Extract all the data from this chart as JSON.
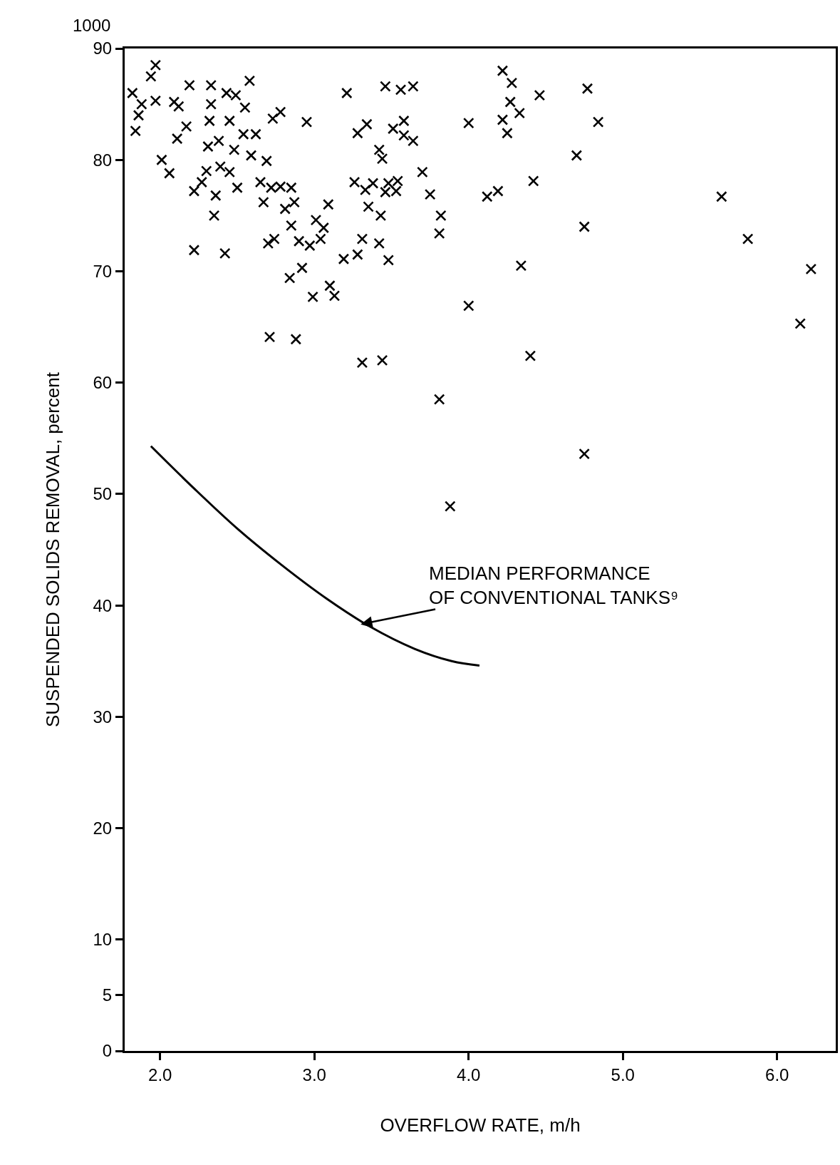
{
  "chart_data": {
    "type": "scatter",
    "xlabel": "OVERFLOW RATE, m/h",
    "ylabel": "SUSPENDED SOLIDS REMOVAL, percent",
    "xlim": [
      1.77,
      6.38
    ],
    "xticks": [
      {
        "value": 2,
        "label": "2.0"
      },
      {
        "value": 3,
        "label": "3.0"
      },
      {
        "value": 4,
        "label": "4.0"
      },
      {
        "value": 5,
        "label": "5.0"
      },
      {
        "value": 6,
        "label": "6.0"
      }
    ],
    "ylim": [
      0,
      90
    ],
    "yticks": [
      0,
      5,
      10,
      20,
      30,
      40,
      50,
      60,
      70,
      80,
      90
    ],
    "grid": false,
    "marker": "cross",
    "annotations": [
      "1000",
      {
        "text": "MEDIAN PERFORMANCE\nOF CONVENTIONAL TANKS⁹",
        "x": 3.3,
        "y": 38.3
      }
    ],
    "series": [
      {
        "type": "scatter",
        "color": "#000000",
        "x": [
          1.82,
          1.84,
          1.86,
          1.88,
          1.94,
          1.97,
          1.97,
          2.01,
          2.06,
          2.09,
          2.11,
          2.12,
          2.17,
          2.19,
          2.22,
          2.22,
          2.27,
          2.3,
          2.33,
          2.31,
          2.32,
          2.35,
          2.33,
          2.38,
          2.36,
          2.39,
          2.43,
          2.42,
          2.45,
          2.49,
          2.48,
          2.45,
          2.5,
          2.55,
          2.54,
          2.58,
          2.59,
          2.62,
          2.65,
          2.67,
          2.69,
          2.72,
          2.73,
          2.7,
          2.74,
          2.71,
          2.78,
          2.78,
          2.81,
          2.84,
          2.85,
          2.85,
          2.87,
          2.88,
          2.9,
          2.92,
          2.95,
          2.97,
          2.99,
          3.01,
          3.04,
          3.06,
          3.09,
          3.1,
          3.13,
          3.19,
          3.21,
          3.26,
          3.28,
          3.28,
          3.31,
          3.31,
          3.33,
          3.34,
          3.35,
          3.38,
          3.42,
          3.42,
          3.43,
          3.44,
          3.44,
          3.46,
          3.46,
          3.48,
          3.48,
          3.51,
          3.53,
          3.54,
          3.56,
          3.58,
          3.58,
          3.64,
          3.64,
          3.7,
          3.75,
          3.82,
          3.81,
          3.81,
          3.88,
          4.0,
          4.0,
          4.12,
          4.19,
          4.22,
          4.28,
          4.22,
          4.27,
          4.25,
          4.33,
          4.34,
          4.42,
          4.4,
          4.46,
          4.7,
          4.75,
          4.77,
          4.75,
          4.84,
          5.64,
          5.81,
          6.15,
          6.22
        ],
        "values": [
          86,
          82.6,
          84,
          85,
          87.5,
          88.5,
          85.3,
          80,
          78.8,
          85.2,
          81.9,
          84.8,
          83,
          86.7,
          77.2,
          71.9,
          78,
          79,
          86.7,
          81.2,
          83.5,
          75,
          85,
          81.7,
          76.8,
          79.4,
          86,
          71.6,
          83.5,
          85.8,
          80.9,
          78.9,
          77.5,
          84.7,
          82.3,
          87.1,
          80.4,
          82.3,
          78,
          76.2,
          79.9,
          77.5,
          83.7,
          72.5,
          72.9,
          64.1,
          84.3,
          77.6,
          75.6,
          69.4,
          77.5,
          74.1,
          76.2,
          63.9,
          72.7,
          70.3,
          83.4,
          72.3,
          67.7,
          74.6,
          72.9,
          73.9,
          76,
          68.7,
          67.8,
          71.1,
          86,
          78,
          82.4,
          71.5,
          72.9,
          61.8,
          77.3,
          83.2,
          75.8,
          77.9,
          80.9,
          72.5,
          75,
          62,
          80.1,
          77.1,
          86.6,
          71,
          77.9,
          82.8,
          77.2,
          78.1,
          86.3,
          82.2,
          83.5,
          86.6,
          81.7,
          78.9,
          76.9,
          75,
          73.4,
          58.5,
          48.9,
          83.3,
          66.9,
          76.7,
          77.2,
          88,
          86.9,
          83.6,
          85.2,
          82.4,
          84.2,
          70.5,
          78.1,
          62.4,
          85.8,
          80.4,
          74,
          86.4,
          53.6,
          83.4,
          76.7,
          72.9,
          65.3,
          70.2
        ]
      },
      {
        "type": "line",
        "color": "#000000",
        "marker": "none",
        "line_style": "solid",
        "x": [
          1.94,
          2.22,
          2.5,
          2.79,
          3.08,
          3.36,
          3.65,
          3.89,
          4.07
        ],
        "values": [
          54.3,
          50.5,
          46.9,
          43.6,
          40.6,
          38.1,
          36.1,
          35,
          34.6
        ]
      }
    ]
  }
}
